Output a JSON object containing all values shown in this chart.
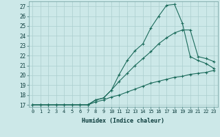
{
  "title": "",
  "xlabel": "Humidex (Indice chaleur)",
  "ylabel": "",
  "bg_color": "#cce8e8",
  "grid_color": "#aacece",
  "line_color": "#1a6a5a",
  "x_ticks": [
    0,
    1,
    2,
    3,
    4,
    5,
    6,
    7,
    8,
    9,
    10,
    11,
    12,
    13,
    14,
    15,
    16,
    17,
    18,
    19,
    20,
    21,
    22,
    23
  ],
  "y_min": 17,
  "y_max": 27,
  "y_ticks": [
    17,
    18,
    19,
    20,
    21,
    22,
    23,
    24,
    25,
    26,
    27
  ],
  "series": [
    [
      17,
      17,
      17,
      17,
      17,
      17,
      17,
      17,
      17.3,
      17.5,
      17.8,
      18.0,
      18.3,
      18.6,
      18.9,
      19.2,
      19.4,
      19.6,
      19.8,
      19.9,
      20.1,
      20.2,
      20.3,
      20.5
    ],
    [
      17,
      17,
      17,
      17,
      17,
      17,
      17,
      17,
      17.5,
      17.7,
      18.5,
      19.4,
      20.2,
      21.0,
      21.7,
      22.4,
      23.2,
      23.8,
      24.3,
      24.6,
      24.6,
      21.9,
      21.7,
      21.4
    ],
    [
      17,
      17,
      17,
      17,
      17,
      17,
      17,
      17,
      17.5,
      17.7,
      18.5,
      20.1,
      21.5,
      22.5,
      23.2,
      24.8,
      26.0,
      27.1,
      27.2,
      25.3,
      21.9,
      21.5,
      21.2,
      20.7
    ]
  ]
}
